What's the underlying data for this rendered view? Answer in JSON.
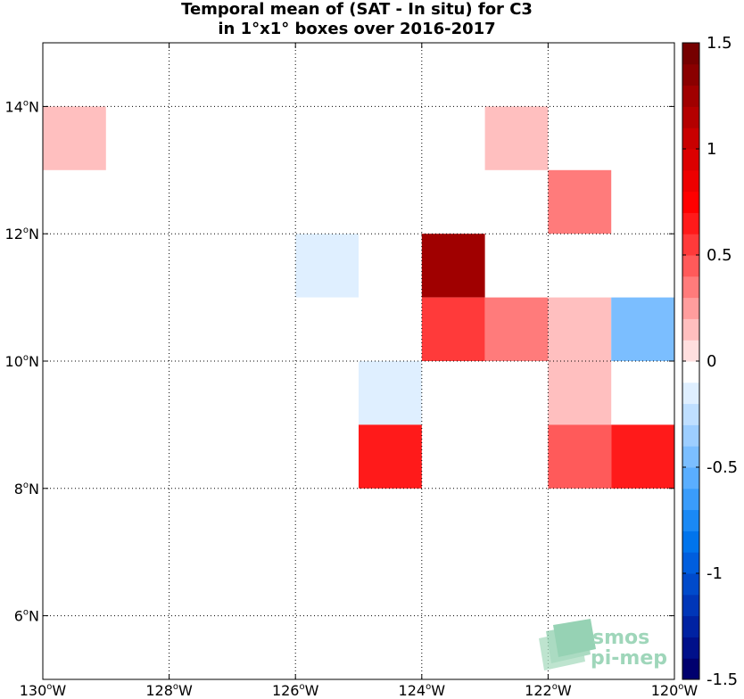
{
  "title_line1": "Temporal mean of (SAT - In situ) for C3",
  "title_line2": "in 1°x1° boxes over 2016-2017",
  "chart_data": {
    "type": "heatmap",
    "x_range": [
      -130,
      -120
    ],
    "y_range": [
      5,
      15
    ],
    "x_ticks": [
      {
        "value": -130,
        "label": "130",
        "hemi": "W"
      },
      {
        "value": -128,
        "label": "128",
        "hemi": "W"
      },
      {
        "value": -126,
        "label": "126",
        "hemi": "W"
      },
      {
        "value": -124,
        "label": "124",
        "hemi": "W"
      },
      {
        "value": -122,
        "label": "122",
        "hemi": "W"
      },
      {
        "value": -120,
        "label": "120",
        "hemi": "W"
      }
    ],
    "y_ticks": [
      {
        "value": 6,
        "label": "6",
        "hemi": "N"
      },
      {
        "value": 8,
        "label": "8",
        "hemi": "N"
      },
      {
        "value": 10,
        "label": "10",
        "hemi": "N"
      },
      {
        "value": 12,
        "label": "12",
        "hemi": "N"
      },
      {
        "value": 14,
        "label": "14",
        "hemi": "N"
      }
    ],
    "grid": true,
    "cells": [
      {
        "lon": -130,
        "lat": 13,
        "value": 0.15
      },
      {
        "lon": -123,
        "lat": 13,
        "value": 0.15
      },
      {
        "lon": -122,
        "lat": 12,
        "value": 0.3
      },
      {
        "lon": -126,
        "lat": 11,
        "value": -0.2
      },
      {
        "lon": -124,
        "lat": 11,
        "value": 1.3
      },
      {
        "lon": -124,
        "lat": 10,
        "value": 0.55
      },
      {
        "lon": -123,
        "lat": 10,
        "value": 0.3
      },
      {
        "lon": -122,
        "lat": 10,
        "value": 0.15
      },
      {
        "lon": -121,
        "lat": 10,
        "value": -0.45
      },
      {
        "lon": -125,
        "lat": 9,
        "value": -0.1
      },
      {
        "lon": -122,
        "lat": 9,
        "value": 0.15
      },
      {
        "lon": -125,
        "lat": 8,
        "value": 0.65
      },
      {
        "lon": -122,
        "lat": 8,
        "value": 0.45
      },
      {
        "lon": -121,
        "lat": 8,
        "value": 0.65
      }
    ],
    "colorbar": {
      "min": -1.5,
      "max": 1.5,
      "ticks": [
        {
          "value": 1.5,
          "label": "1.5"
        },
        {
          "value": 1,
          "label": "1"
        },
        {
          "value": 0.5,
          "label": "0.5"
        },
        {
          "value": 0,
          "label": "0"
        },
        {
          "value": -0.5,
          "label": "-0.5"
        },
        {
          "value": -1,
          "label": "-1"
        },
        {
          "value": -1.5,
          "label": "-1.5"
        }
      ],
      "colors": [
        "#00006e",
        "#00108a",
        "#0022a2",
        "#0036b8",
        "#004acb",
        "#005ede",
        "#0074ec",
        "#1a89f5",
        "#3a9cfb",
        "#5aaeff",
        "#7bbeff",
        "#9dceff",
        "#bfdfff",
        "#dfefff",
        "#ffffff",
        "#ffdfdf",
        "#ffbfbf",
        "#ff9d9d",
        "#ff7b7b",
        "#ff5a5a",
        "#ff3a3a",
        "#ff1a1a",
        "#ff0000",
        "#ee0000",
        "#dc0000",
        "#c80000",
        "#b40000",
        "#a00000",
        "#8a0000",
        "#760000"
      ]
    }
  },
  "logo": {
    "line1": "smos",
    "line2": "pi-mep"
  }
}
